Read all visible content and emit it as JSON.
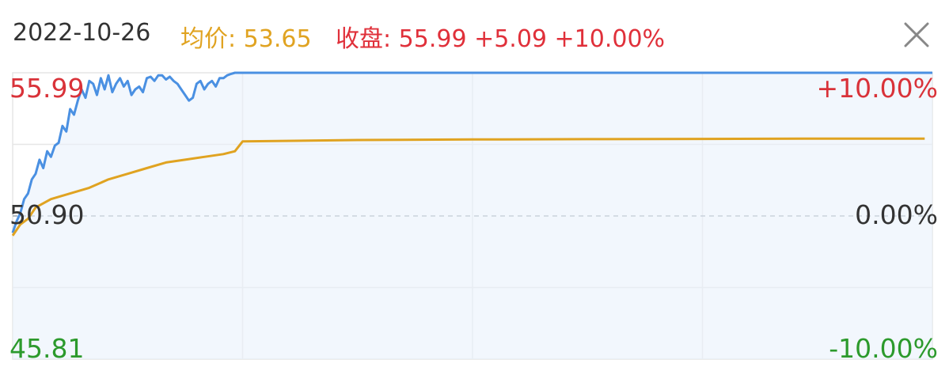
{
  "header": {
    "date": "2022-10-26",
    "avg_label": "均价: 53.65",
    "close_label": "收盘: 55.99 +5.09 +10.00%"
  },
  "colors": {
    "price_line": "#4a90e2",
    "avg_line": "#e0a321",
    "up": "#d93239",
    "down": "#2c9a2c",
    "neutral": "#333333",
    "grid": "#e6e6e6"
  },
  "chart_data": {
    "type": "line",
    "xlim": [
      0,
      240
    ],
    "ylim": [
      45.81,
      55.99
    ],
    "left_axis_labels": [
      "55.99",
      "50.90",
      "45.81"
    ],
    "right_axis_labels": [
      "+10.00%",
      "0.00%",
      "-10.00%"
    ],
    "series": [
      {
        "name": "price",
        "x": [
          0,
          1,
          2,
          3,
          4,
          5,
          6,
          7,
          8,
          9,
          10,
          11,
          12,
          13,
          14,
          15,
          16,
          17,
          18,
          19,
          20,
          21,
          22,
          23,
          24,
          25,
          26,
          27,
          28,
          29,
          30,
          31,
          32,
          33,
          34,
          35,
          36,
          37,
          38,
          39,
          40,
          41,
          42,
          43,
          44,
          45,
          46,
          47,
          48,
          49,
          50,
          51,
          52,
          53,
          54,
          55,
          56,
          57,
          58,
          60,
          240
        ],
        "y": [
          50.3,
          50.7,
          51.0,
          51.5,
          51.7,
          52.2,
          52.4,
          52.9,
          52.6,
          53.2,
          53.0,
          53.4,
          53.5,
          54.1,
          53.9,
          54.7,
          54.5,
          55.0,
          55.4,
          55.1,
          55.7,
          55.6,
          55.2,
          55.8,
          55.4,
          55.9,
          55.3,
          55.6,
          55.8,
          55.5,
          55.7,
          55.2,
          55.4,
          55.5,
          55.3,
          55.8,
          55.85,
          55.7,
          55.9,
          55.9,
          55.75,
          55.85,
          55.7,
          55.6,
          55.4,
          55.2,
          55.0,
          55.1,
          55.6,
          55.7,
          55.4,
          55.6,
          55.7,
          55.5,
          55.8,
          55.8,
          55.9,
          55.95,
          55.99,
          55.99,
          55.99
        ]
      },
      {
        "name": "avg",
        "x": [
          0,
          2,
          4,
          6,
          10,
          15,
          20,
          25,
          30,
          35,
          40,
          45,
          50,
          55,
          58,
          60,
          90,
          120,
          150,
          180,
          210,
          238
        ],
        "y": [
          50.2,
          50.6,
          50.8,
          51.2,
          51.5,
          51.7,
          51.9,
          52.2,
          52.4,
          52.6,
          52.8,
          52.9,
          53.0,
          53.1,
          53.2,
          53.55,
          53.6,
          53.62,
          53.63,
          53.64,
          53.65,
          53.65
        ]
      }
    ],
    "grid": true
  }
}
